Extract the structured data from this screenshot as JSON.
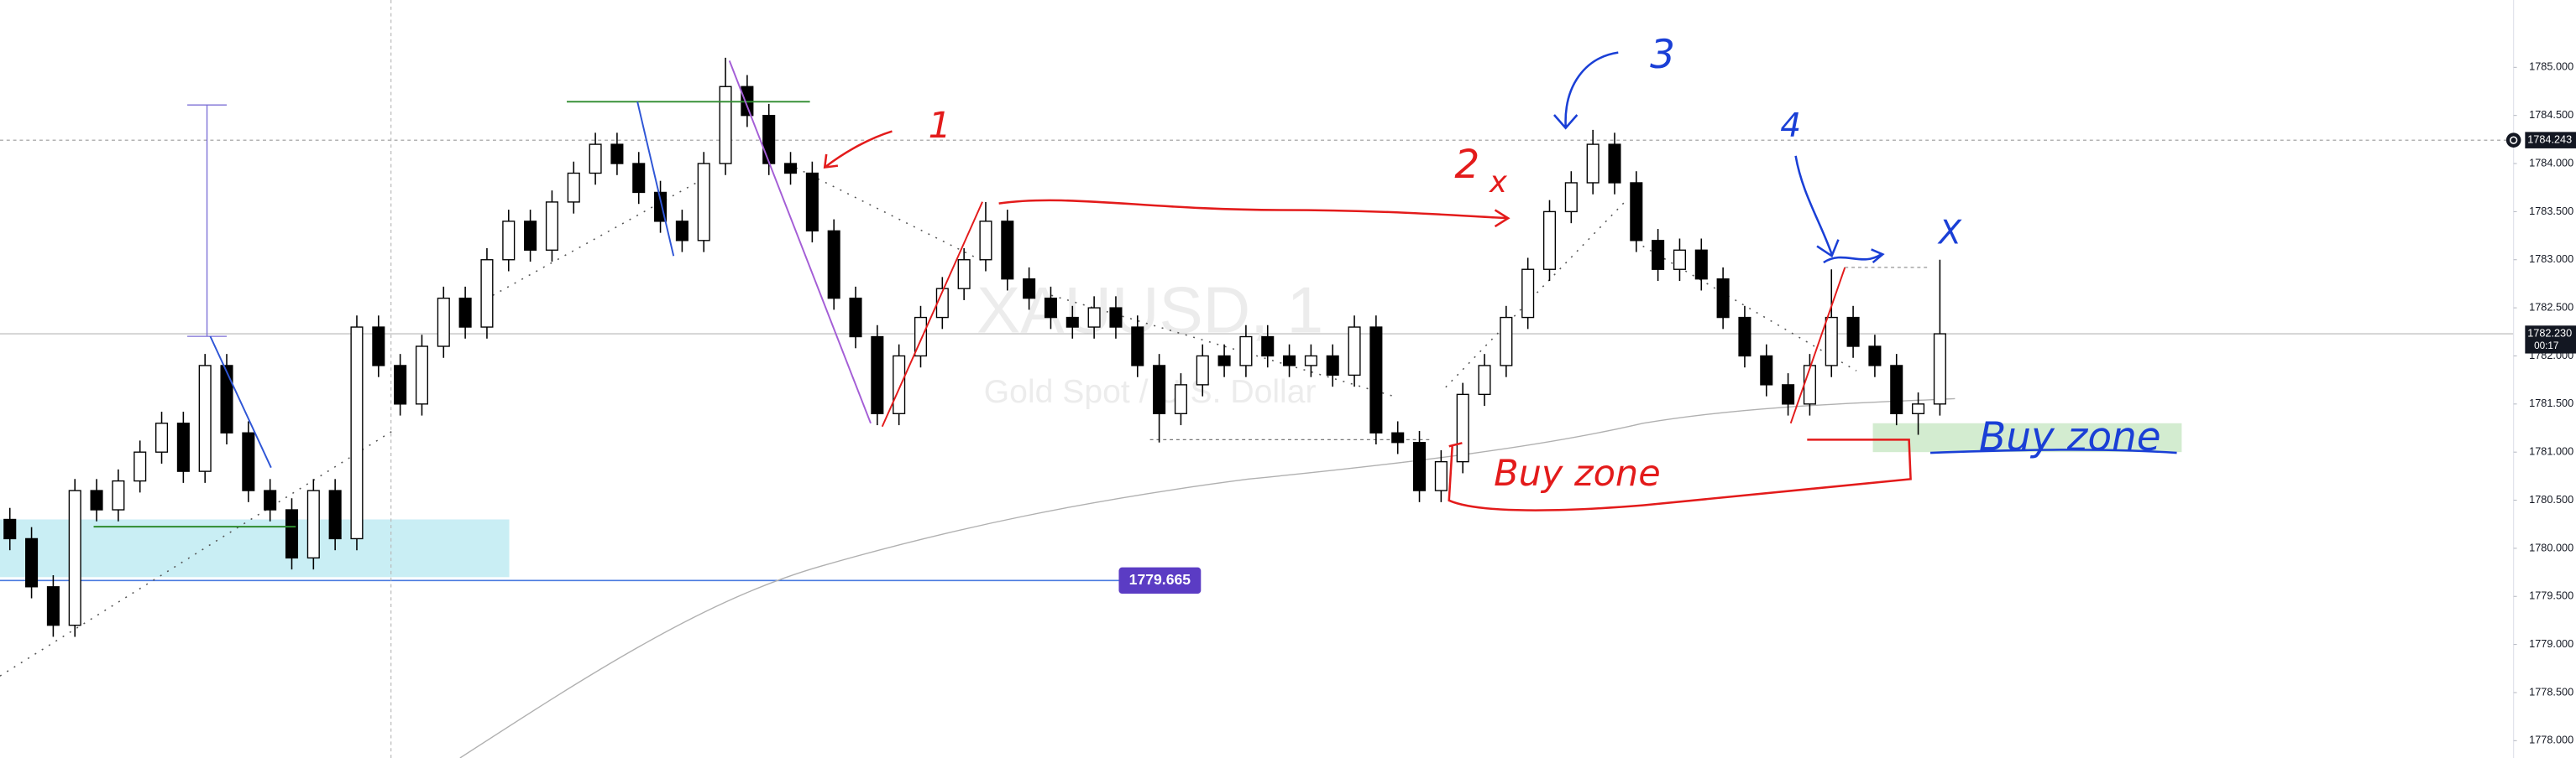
{
  "chart_data": {
    "type": "candlestick",
    "watermark": {
      "symbol": "XAUUSD, 1",
      "description": "Gold Spot / U.S. Dollar"
    },
    "up_color": "#ffffff",
    "down_color": "#000000",
    "border_color": "#000000",
    "ohlc": [
      [
        1780.3,
        1780.42,
        1779.98,
        1780.1
      ],
      [
        1780.1,
        1780.22,
        1779.48,
        1779.6
      ],
      [
        1779.6,
        1779.72,
        1779.08,
        1779.2
      ],
      [
        1779.2,
        1780.72,
        1779.08,
        1780.6
      ],
      [
        1780.6,
        1780.72,
        1780.28,
        1780.4
      ],
      [
        1780.4,
        1780.82,
        1780.28,
        1780.7
      ],
      [
        1780.7,
        1781.12,
        1780.58,
        1781.0
      ],
      [
        1781.0,
        1781.42,
        1780.88,
        1781.3
      ],
      [
        1781.3,
        1781.42,
        1780.68,
        1780.8
      ],
      [
        1780.8,
        1782.02,
        1780.68,
        1781.9
      ],
      [
        1781.9,
        1782.02,
        1781.08,
        1781.2
      ],
      [
        1781.2,
        1781.32,
        1780.48,
        1780.6
      ],
      [
        1780.6,
        1780.72,
        1780.28,
        1780.4
      ],
      [
        1780.4,
        1780.52,
        1779.78,
        1779.9
      ],
      [
        1779.9,
        1780.72,
        1779.78,
        1780.6
      ],
      [
        1780.6,
        1780.72,
        1779.98,
        1780.1
      ],
      [
        1780.1,
        1782.42,
        1779.98,
        1782.3
      ],
      [
        1782.3,
        1782.42,
        1781.78,
        1781.9
      ],
      [
        1781.9,
        1782.02,
        1781.38,
        1781.5
      ],
      [
        1781.5,
        1782.22,
        1781.38,
        1782.1
      ],
      [
        1782.1,
        1782.72,
        1781.98,
        1782.6
      ],
      [
        1782.6,
        1782.72,
        1782.18,
        1782.3
      ],
      [
        1782.3,
        1783.12,
        1782.18,
        1783.0
      ],
      [
        1783.0,
        1783.52,
        1782.88,
        1783.4
      ],
      [
        1783.4,
        1783.52,
        1782.98,
        1783.1
      ],
      [
        1783.1,
        1783.72,
        1782.98,
        1783.6
      ],
      [
        1783.6,
        1784.02,
        1783.48,
        1783.9
      ],
      [
        1783.9,
        1784.32,
        1783.78,
        1784.2
      ],
      [
        1784.2,
        1784.32,
        1783.88,
        1784.0
      ],
      [
        1784.0,
        1784.12,
        1783.58,
        1783.7
      ],
      [
        1783.7,
        1783.82,
        1783.28,
        1783.4
      ],
      [
        1783.4,
        1783.52,
        1783.08,
        1783.2
      ],
      [
        1783.2,
        1784.12,
        1783.08,
        1784.0
      ],
      [
        1784.0,
        1785.1,
        1783.88,
        1784.8
      ],
      [
        1784.8,
        1784.92,
        1784.38,
        1784.5
      ],
      [
        1784.5,
        1784.62,
        1783.88,
        1784.0
      ],
      [
        1784.0,
        1784.12,
        1783.78,
        1783.9
      ],
      [
        1783.9,
        1784.02,
        1783.18,
        1783.3
      ],
      [
        1783.3,
        1783.42,
        1782.48,
        1782.6
      ],
      [
        1782.6,
        1782.72,
        1782.08,
        1782.2
      ],
      [
        1782.2,
        1782.32,
        1781.28,
        1781.4
      ],
      [
        1781.4,
        1782.12,
        1781.28,
        1782.0
      ],
      [
        1782.0,
        1782.52,
        1781.88,
        1782.4
      ],
      [
        1782.4,
        1782.82,
        1782.28,
        1782.7
      ],
      [
        1782.7,
        1783.12,
        1782.58,
        1783.0
      ],
      [
        1783.0,
        1783.6,
        1782.88,
        1783.4
      ],
      [
        1783.4,
        1783.52,
        1782.68,
        1782.8
      ],
      [
        1782.8,
        1782.92,
        1782.48,
        1782.6
      ],
      [
        1782.6,
        1782.72,
        1782.28,
        1782.4
      ],
      [
        1782.4,
        1782.52,
        1782.18,
        1782.3
      ],
      [
        1782.3,
        1782.62,
        1782.18,
        1782.5
      ],
      [
        1782.5,
        1782.62,
        1782.18,
        1782.3
      ],
      [
        1782.3,
        1782.42,
        1781.78,
        1781.9
      ],
      [
        1781.9,
        1782.02,
        1781.1,
        1781.4
      ],
      [
        1781.4,
        1781.82,
        1781.28,
        1781.7
      ],
      [
        1781.7,
        1782.12,
        1781.58,
        1782.0
      ],
      [
        1782.0,
        1782.12,
        1781.78,
        1781.9
      ],
      [
        1781.9,
        1782.32,
        1781.78,
        1782.2
      ],
      [
        1782.2,
        1782.32,
        1781.88,
        1782.0
      ],
      [
        1782.0,
        1782.12,
        1781.78,
        1781.9
      ],
      [
        1781.9,
        1782.12,
        1781.78,
        1782.0
      ],
      [
        1782.0,
        1782.12,
        1781.68,
        1781.8
      ],
      [
        1781.8,
        1782.42,
        1781.68,
        1782.3
      ],
      [
        1782.3,
        1782.42,
        1781.08,
        1781.2
      ],
      [
        1781.2,
        1781.32,
        1780.98,
        1781.1
      ],
      [
        1781.1,
        1781.22,
        1780.48,
        1780.6
      ],
      [
        1780.6,
        1781.02,
        1780.48,
        1780.9
      ],
      [
        1780.9,
        1781.72,
        1780.78,
        1781.6
      ],
      [
        1781.6,
        1782.02,
        1781.48,
        1781.9
      ],
      [
        1781.9,
        1782.52,
        1781.78,
        1782.4
      ],
      [
        1782.4,
        1783.02,
        1782.28,
        1782.9
      ],
      [
        1782.9,
        1783.62,
        1782.78,
        1783.5
      ],
      [
        1783.5,
        1783.92,
        1783.38,
        1783.8
      ],
      [
        1783.8,
        1784.35,
        1783.68,
        1784.2
      ],
      [
        1784.2,
        1784.32,
        1783.68,
        1783.8
      ],
      [
        1783.8,
        1783.92,
        1783.08,
        1783.2
      ],
      [
        1783.2,
        1783.32,
        1782.78,
        1782.9
      ],
      [
        1782.9,
        1783.22,
        1782.78,
        1783.1
      ],
      [
        1783.1,
        1783.22,
        1782.68,
        1782.8
      ],
      [
        1782.8,
        1782.92,
        1782.28,
        1782.4
      ],
      [
        1782.4,
        1782.52,
        1781.88,
        1782.0
      ],
      [
        1782.0,
        1782.12,
        1781.58,
        1781.7
      ],
      [
        1781.7,
        1781.82,
        1781.38,
        1781.5
      ],
      [
        1781.5,
        1782.02,
        1781.38,
        1781.9
      ],
      [
        1781.9,
        1782.9,
        1781.78,
        1782.4
      ],
      [
        1782.4,
        1782.52,
        1781.98,
        1782.1
      ],
      [
        1782.1,
        1782.22,
        1781.78,
        1781.9
      ],
      [
        1781.9,
        1782.02,
        1781.28,
        1781.4
      ],
      [
        1781.4,
        1781.62,
        1781.18,
        1781.5
      ],
      [
        1781.5,
        1783.0,
        1781.38,
        1782.23
      ]
    ],
    "ylim": [
      1777.82,
      1785.7
    ],
    "yticks": [
      {
        "value": 1778,
        "label": "1778.000"
      },
      {
        "value": 1778.5,
        "label": "1778.500"
      },
      {
        "value": 1779,
        "label": "1779.000"
      },
      {
        "value": 1779.5,
        "label": "1779.500"
      },
      {
        "value": 1780,
        "label": "1780.000"
      },
      {
        "value": 1780.5,
        "label": "1780.500"
      },
      {
        "value": 1781,
        "label": "1781.000"
      },
      {
        "value": 1781.5,
        "label": "1781.500"
      },
      {
        "value": 1782,
        "label": "1782.000"
      },
      {
        "value": 1782.5,
        "label": "1782.500"
      },
      {
        "value": 1783,
        "label": "1783.000"
      },
      {
        "value": 1783.5,
        "label": "1783.500"
      },
      {
        "value": 1784,
        "label": "1784.000"
      },
      {
        "value": 1784.5,
        "label": "1784.500"
      },
      {
        "value": 1785,
        "label": "1785.000"
      }
    ],
    "last_price": {
      "value": 1782.23,
      "label": "1782.230"
    },
    "countdown": "00:17",
    "alert_price": {
      "value": 1784.243,
      "label": "1784.243"
    },
    "level": {
      "value": 1779.665,
      "label": "1779.665",
      "color": "#5b3cc4"
    },
    "zones": [
      {
        "from": 1779.7,
        "to": 1780.3,
        "color": "#c9eef4"
      },
      {
        "from": 1781.0,
        "to": 1781.3,
        "color": "#d3ecd0"
      }
    ],
    "annotations": [
      {
        "text": "1",
        "color": "#e31b1b"
      },
      {
        "text": "2",
        "color": "#e31b1b"
      },
      {
        "text": "x",
        "color": "#e31b1b"
      },
      {
        "text": "3",
        "color": "#1a3fd6"
      },
      {
        "text": "4",
        "color": "#1a3fd6"
      },
      {
        "text": "X",
        "color": "#1a3fd6"
      },
      {
        "text": "Buy zone",
        "color": "#e31b1b"
      },
      {
        "text": "Buy zone",
        "color": "#1a3fd6"
      }
    ]
  }
}
